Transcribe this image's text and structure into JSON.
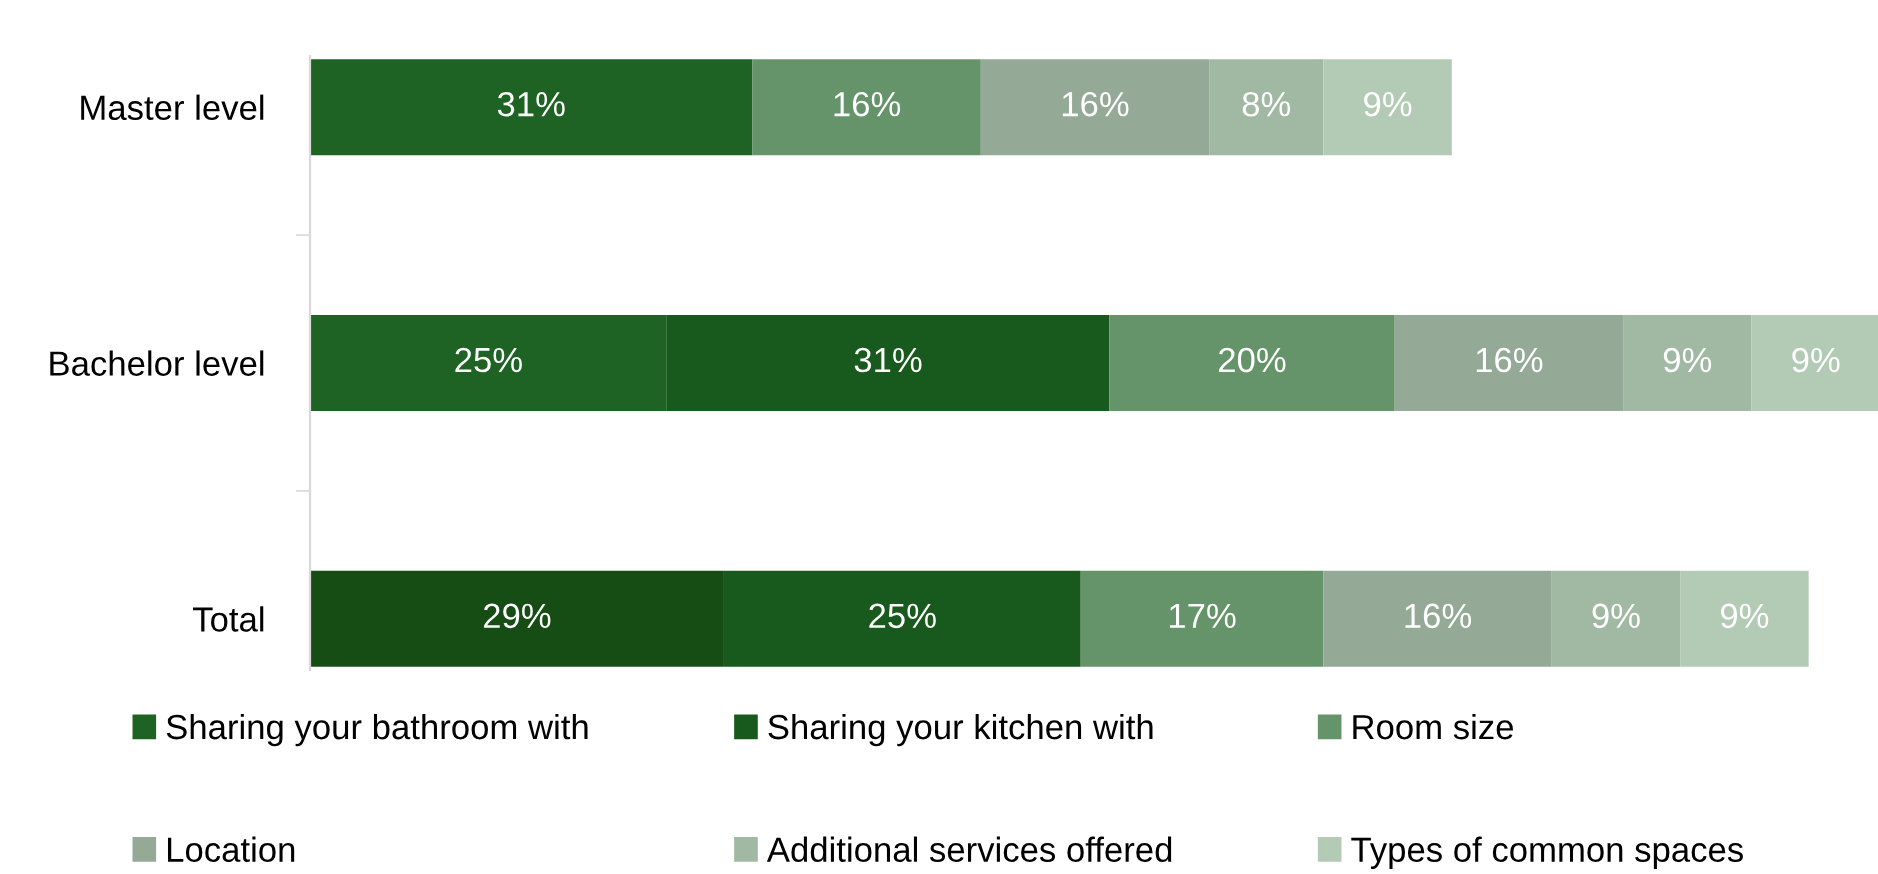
{
  "chart_data": {
    "type": "bar",
    "orientation": "horizontal",
    "stacked": true,
    "tick_labels": "y",
    "categories": [
      "Master level",
      "Bachelor level",
      "Total"
    ],
    "series": [
      {
        "color": "#154d14",
        "values": [
          null,
          null,
          29
        ],
        "value_labels": [
          null,
          null,
          "29%"
        ]
      },
      {
        "name": "Sharing your bathroom with",
        "color": "#1e6323",
        "values": [
          31,
          25,
          null
        ],
        "value_labels": [
          "31%",
          "25%",
          null
        ]
      },
      {
        "name": "Sharing your kitchen with",
        "color": "#185a1d",
        "values": [
          null,
          31,
          25
        ],
        "value_labels": [
          null,
          "31%",
          "25%"
        ]
      },
      {
        "name": "Room size",
        "color": "#66946a",
        "values": [
          16,
          20,
          17
        ],
        "value_labels": [
          "16%",
          "20%",
          "17%"
        ]
      },
      {
        "name": "Location",
        "color": "#94a996",
        "values": [
          16,
          16,
          16
        ],
        "value_labels": [
          "16%",
          "16%",
          "16%"
        ]
      },
      {
        "name": "Additional services offered",
        "color": "#a1b9a3",
        "values": [
          8,
          9,
          9
        ],
        "value_labels": [
          "8%",
          "9%",
          "9%"
        ]
      },
      {
        "name": "Types of common spaces",
        "color": "#b3cab4",
        "values": [
          9,
          9,
          9
        ],
        "value_labels": [
          "9%",
          "9%",
          "9%"
        ]
      }
    ],
    "legend": "bottom",
    "grid": false
  }
}
